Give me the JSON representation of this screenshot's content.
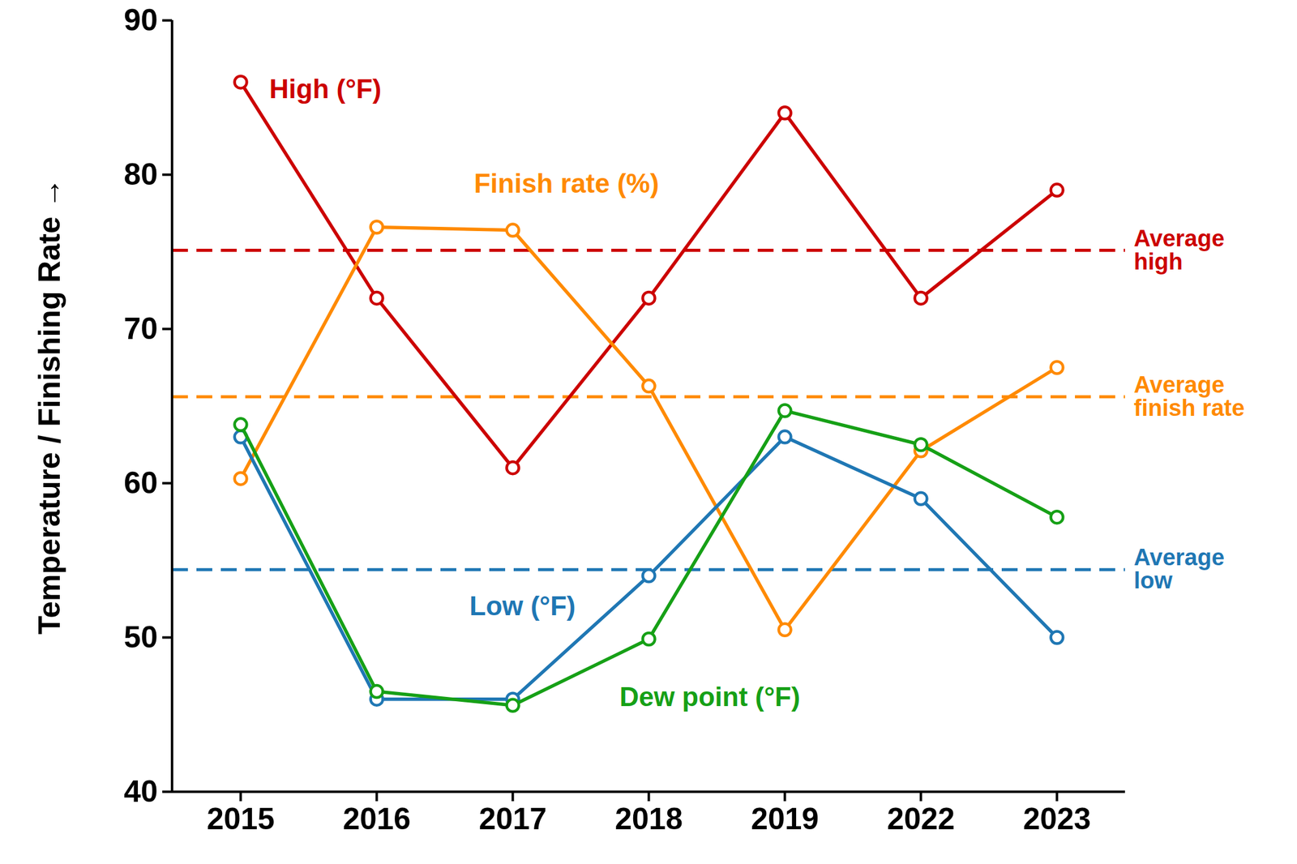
{
  "chart_data": {
    "type": "line",
    "categories": [
      "2015",
      "2016",
      "2017",
      "2018",
      "2019",
      "2022",
      "2023"
    ],
    "ylabel": "Temperature / Finishing Rate",
    "ylim": [
      40,
      90
    ],
    "yticks": [
      40,
      50,
      60,
      70,
      80,
      90
    ],
    "grid": false,
    "marker": "open_circle",
    "series": [
      {
        "name": "High (°F)",
        "color": "#cc0000",
        "values": [
          86,
          72,
          61,
          72,
          84,
          72,
          79
        ],
        "average": 75.1,
        "average_label": "Average\nhigh"
      },
      {
        "name": "Finish rate (%)",
        "color": "#ff8a00",
        "values": [
          60.3,
          76.6,
          76.4,
          66.3,
          50.5,
          62.1,
          67.5
        ],
        "average": 65.6,
        "average_label": "Average\nfinish rate"
      },
      {
        "name": "Low (°F)",
        "color": "#1f77b4",
        "values": [
          63,
          46,
          46,
          54,
          63,
          59,
          50
        ],
        "average": 54.4,
        "average_label": "Average\nlow"
      },
      {
        "name": "Dew point (°F)",
        "color": "#16a016",
        "values": [
          63.8,
          46.5,
          45.6,
          49.9,
          64.7,
          62.5,
          57.8
        ],
        "average": null,
        "average_label": null
      }
    ]
  }
}
